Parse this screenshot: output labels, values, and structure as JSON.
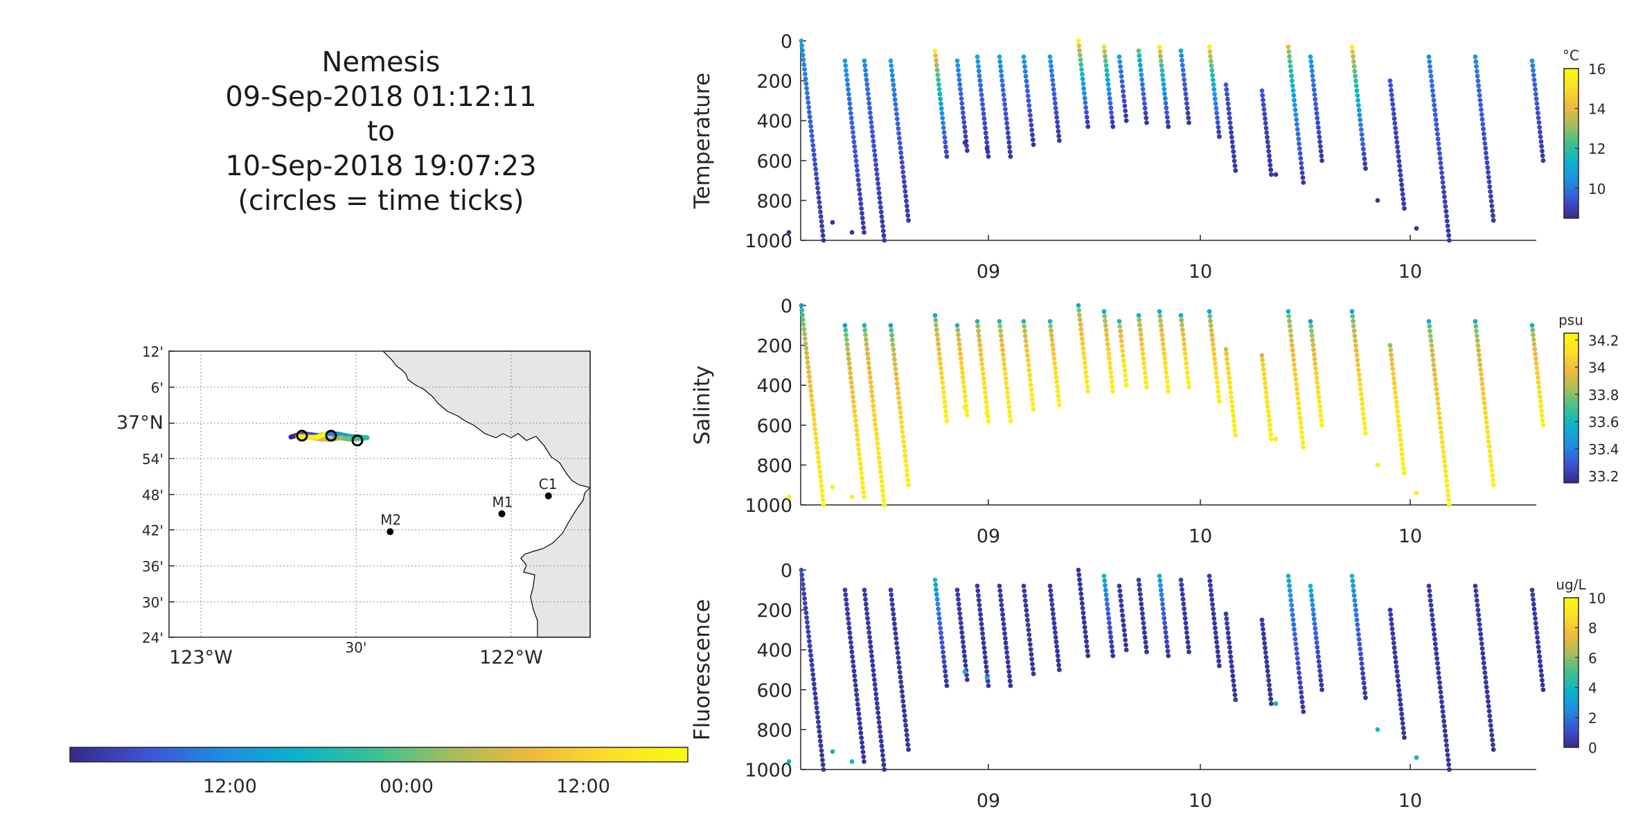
{
  "title": {
    "lines": [
      "Nemesis",
      "09-Sep-2018 01:12:11",
      "to",
      "10-Sep-2018 19:07:23",
      "(circles = time ticks)"
    ]
  },
  "colors": {
    "parula": [
      "#352a87",
      "#3d54d4",
      "#1e8ee0",
      "#0db3c9",
      "#3fc08e",
      "#a8bd5b",
      "#f0b93c",
      "#fadf2a",
      "#f9fb0e"
    ],
    "land": "#e6e6e6",
    "axis": "#262626"
  },
  "map": {
    "lat_labels": [
      "12'",
      "6'",
      "37°N",
      "54'",
      "48'",
      "42'",
      "36'",
      "30'",
      "24'"
    ],
    "lon_labels": [
      "123°W",
      "30'",
      "122°W"
    ],
    "stations": [
      {
        "name": "C1",
        "lon": -121.88,
        "lat": 36.797
      },
      {
        "name": "M1",
        "lon": -122.03,
        "lat": 36.747
      },
      {
        "name": "M2",
        "lon": -122.39,
        "lat": 36.697
      }
    ]
  },
  "time_colorbar": {
    "tick_labels": [
      "12:00",
      "00:00",
      "12:00"
    ]
  },
  "chart_data": [
    {
      "type": "scatter",
      "ylabel": "Temperature",
      "unit": "°C",
      "x_tick_labels": [
        "09",
        "10",
        "10"
      ],
      "y_tick_labels": [
        "0",
        "200",
        "400",
        "600",
        "800",
        "1000"
      ],
      "ylim": [
        1000,
        0
      ],
      "clim": [
        8.5,
        16
      ],
      "colorbar_ticks": [
        "16",
        "14",
        "12",
        "10"
      ],
      "surface_value": 11,
      "deep_value": 8.8
    },
    {
      "type": "scatter",
      "ylabel": "Salinity",
      "unit": "psu",
      "x_tick_labels": [
        "09",
        "10",
        "10"
      ],
      "y_tick_labels": [
        "0",
        "200",
        "400",
        "600",
        "800",
        "1000"
      ],
      "ylim": [
        1000,
        0
      ],
      "clim": [
        33.15,
        34.25
      ],
      "colorbar_ticks": [
        "34.2",
        "34",
        "33.8",
        "33.6",
        "33.4",
        "33.2"
      ],
      "surface_value": 33.55,
      "deep_value": 34.2
    },
    {
      "type": "scatter",
      "ylabel": "Fluorescence",
      "unit": "ug/L",
      "x_tick_labels": [
        "09",
        "10",
        "10"
      ],
      "y_tick_labels": [
        "0",
        "200",
        "400",
        "600",
        "800",
        "1000"
      ],
      "ylim": [
        1000,
        0
      ],
      "clim": [
        0,
        10
      ],
      "colorbar_ticks": [
        "10",
        "8",
        "6",
        "4",
        "2",
        "0"
      ],
      "surface_value": 4,
      "deep_value": 0.3
    }
  ],
  "profiles": [
    {
      "d": [
        0,
        1
      ],
      "isolated": 1,
      "t": [
        11,
        8.8
      ],
      "s": [
        33.45,
        34.2
      ],
      "f": [
        1,
        0.3
      ]
    },
    {
      "d": [
        0.1,
        0.96
      ],
      "isolated": 0.95,
      "t": [
        11,
        8.8
      ],
      "s": [
        33.5,
        34.2
      ],
      "f": [
        0.5,
        0.3
      ]
    },
    {
      "d": [
        0.1,
        1.0
      ],
      "isolated": 1.0,
      "t": [
        10.5,
        8.8
      ],
      "s": [
        33.6,
        34.2
      ],
      "f": [
        0.5,
        0.3
      ]
    },
    {
      "d": [
        0.1,
        0.9
      ],
      "isolated": 0,
      "t": [
        11,
        8.8
      ],
      "s": [
        33.5,
        34.2
      ],
      "f": [
        0.5,
        0.3
      ]
    },
    {
      "d": [
        0.05,
        0.58
      ],
      "isolated": 0,
      "t": [
        15.5,
        9
      ],
      "s": [
        33.55,
        34.2
      ],
      "f": [
        4,
        0.3
      ]
    },
    {
      "d": [
        0.1,
        0.55
      ],
      "isolated": 0,
      "t": [
        11,
        8.8
      ],
      "s": [
        33.6,
        34.2
      ],
      "f": [
        0.5,
        0.3
      ]
    },
    {
      "d": [
        0.08,
        0.58
      ],
      "isolated": 0.55,
      "t": [
        11,
        8.8
      ],
      "s": [
        33.6,
        34.2
      ],
      "f": [
        0.5,
        0.3
      ]
    },
    {
      "d": [
        0.08,
        0.58
      ],
      "isolated": 0.58,
      "t": [
        11,
        8.8
      ],
      "s": [
        33.6,
        34.2
      ],
      "f": [
        0.5,
        0.3
      ]
    },
    {
      "d": [
        0.08,
        0.52
      ],
      "isolated": 0,
      "t": [
        11,
        8.8
      ],
      "s": [
        33.6,
        34.2
      ],
      "f": [
        0.5,
        0.3
      ]
    },
    {
      "d": [
        0.08,
        0.5
      ],
      "isolated": 0,
      "t": [
        11,
        8.8
      ],
      "s": [
        33.6,
        34.2
      ],
      "f": [
        0.5,
        0.3
      ]
    },
    {
      "d": [
        0.0,
        0.43
      ],
      "isolated": 0,
      "t": [
        15.8,
        8.8
      ],
      "s": [
        33.55,
        34.2
      ],
      "f": [
        0.3,
        0.3
      ]
    },
    {
      "d": [
        0.03,
        0.43
      ],
      "isolated": 0,
      "t": [
        15,
        8.8
      ],
      "s": [
        33.55,
        34.2
      ],
      "f": [
        4,
        0.3
      ]
    },
    {
      "d": [
        0.08,
        0.4
      ],
      "isolated": 0,
      "t": [
        11,
        8.8
      ],
      "s": [
        33.6,
        34.2
      ],
      "f": [
        0.5,
        0.3
      ]
    },
    {
      "d": [
        0.05,
        0.41
      ],
      "isolated": 0,
      "t": [
        12.5,
        8.8
      ],
      "s": [
        33.55,
        34.2
      ],
      "f": [
        0.5,
        0.3
      ]
    },
    {
      "d": [
        0.03,
        0.43
      ],
      "isolated": 0,
      "t": [
        15.5,
        8.8
      ],
      "s": [
        33.55,
        34.2
      ],
      "f": [
        4,
        0.3
      ]
    },
    {
      "d": [
        0.05,
        0.41
      ],
      "isolated": 0,
      "t": [
        11,
        8.8
      ],
      "s": [
        33.55,
        34.2
      ],
      "f": [
        0.5,
        0.3
      ]
    },
    {
      "d": [
        0.03,
        0.48
      ],
      "isolated": 0,
      "t": [
        15.5,
        8.8
      ],
      "s": [
        33.5,
        34.2
      ],
      "f": [
        0.5,
        0.3
      ]
    },
    {
      "d": [
        0.22,
        0.65
      ],
      "isolated": 0,
      "t": [
        9.5,
        8.8
      ],
      "s": [
        33.9,
        34.2
      ],
      "f": [
        0.5,
        0.3
      ]
    },
    {
      "d": [
        0.25,
        0.67
      ],
      "isolated": 0,
      "t": [
        9.5,
        8.8
      ],
      "s": [
        33.9,
        34.2
      ],
      "f": [
        0.5,
        0.3
      ]
    },
    {
      "d": [
        0.03,
        0.71
      ],
      "isolated": 0.71,
      "t": [
        14,
        8.8
      ],
      "s": [
        33.55,
        34.2
      ],
      "f": [
        4,
        0.3
      ]
    },
    {
      "d": [
        0.08,
        0.6
      ],
      "isolated": 0,
      "t": [
        11,
        8.8
      ],
      "s": [
        33.5,
        34.2
      ],
      "f": [
        4,
        0.3
      ]
    },
    {
      "d": [
        0.03,
        0.64
      ],
      "isolated": 0,
      "t": [
        15.5,
        8.8
      ],
      "s": [
        33.5,
        34.2
      ],
      "f": [
        4,
        0.3
      ]
    },
    {
      "d": [
        0.2,
        0.84
      ],
      "isolated": 0.84,
      "t": [
        9.5,
        8.8
      ],
      "s": [
        33.8,
        34.2
      ],
      "f": [
        0.5,
        0.3
      ]
    },
    {
      "d": [
        0.08,
        1.0
      ],
      "isolated": 0.98,
      "t": [
        10.5,
        8.8
      ],
      "s": [
        33.55,
        34.2
      ],
      "f": [
        0.5,
        0.3
      ]
    },
    {
      "d": [
        0.08,
        0.9
      ],
      "isolated": 0,
      "t": [
        10.5,
        8.8
      ],
      "s": [
        33.55,
        34.2
      ],
      "f": [
        0.5,
        0.3
      ]
    },
    {
      "d": [
        0.1,
        0.6
      ],
      "isolated": 0,
      "t": [
        10.5,
        8.8
      ],
      "s": [
        33.55,
        34.2
      ],
      "f": [
        0.5,
        0.3
      ]
    }
  ]
}
